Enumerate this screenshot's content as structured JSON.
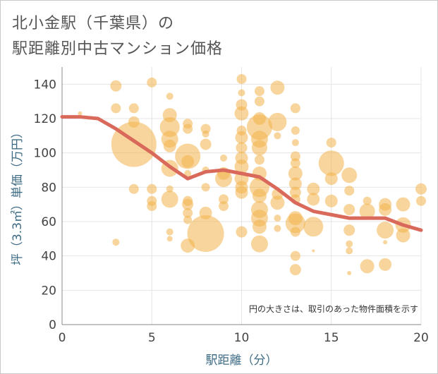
{
  "title_line1": "北小金駅（千葉県）の",
  "title_line2": "駅距離別中古マンション価格",
  "chart_data": {
    "type": "scatter",
    "title": "北小金駅（千葉県）の 駅距離別中古マンション価格",
    "xlabel": "駅距離（分）",
    "ylabel": "坪（3.3㎡）単価（万円）",
    "xlim": [
      0,
      20
    ],
    "ylim": [
      0,
      150
    ],
    "x_ticks": [
      0,
      5,
      10,
      15,
      20
    ],
    "y_ticks": [
      0,
      20,
      40,
      60,
      80,
      100,
      120,
      140
    ],
    "grid": true,
    "note": "円の大きさは、取引のあった物件面積を示す",
    "colors": {
      "bubble": "#f2b24a",
      "line": "#d9695a",
      "grid": "#e4e4e4"
    },
    "bubbles": [
      {
        "x": 1,
        "y": 123,
        "size": 3
      },
      {
        "x": 3,
        "y": 139,
        "size": 8
      },
      {
        "x": 3,
        "y": 126,
        "size": 7
      },
      {
        "x": 3,
        "y": 48,
        "size": 5
      },
      {
        "x": 4,
        "y": 105,
        "size": 32
      },
      {
        "x": 4,
        "y": 126,
        "size": 7
      },
      {
        "x": 4,
        "y": 118,
        "size": 8
      },
      {
        "x": 4,
        "y": 79,
        "size": 7
      },
      {
        "x": 5,
        "y": 141,
        "size": 7
      },
      {
        "x": 5,
        "y": 79,
        "size": 7
      },
      {
        "x": 5,
        "y": 72,
        "size": 7
      },
      {
        "x": 5,
        "y": 69,
        "size": 7
      },
      {
        "x": 6,
        "y": 133,
        "size": 5
      },
      {
        "x": 6,
        "y": 122,
        "size": 10
      },
      {
        "x": 6,
        "y": 115,
        "size": 14
      },
      {
        "x": 6,
        "y": 108,
        "size": 12
      },
      {
        "x": 6,
        "y": 104,
        "size": 9
      },
      {
        "x": 6,
        "y": 91,
        "size": 12
      },
      {
        "x": 6,
        "y": 79,
        "size": 5
      },
      {
        "x": 6,
        "y": 73,
        "size": 12
      },
      {
        "x": 6,
        "y": 54,
        "size": 5
      },
      {
        "x": 6,
        "y": 50,
        "size": 4
      },
      {
        "x": 7,
        "y": 117,
        "size": 7
      },
      {
        "x": 7,
        "y": 114,
        "size": 7
      },
      {
        "x": 7,
        "y": 98,
        "size": 18
      },
      {
        "x": 7,
        "y": 95,
        "size": 9
      },
      {
        "x": 7,
        "y": 88,
        "size": 5
      },
      {
        "x": 7,
        "y": 72,
        "size": 7
      },
      {
        "x": 7,
        "y": 70,
        "size": 8
      },
      {
        "x": 7,
        "y": 65,
        "size": 7
      },
      {
        "x": 7,
        "y": 61,
        "size": 6
      },
      {
        "x": 7,
        "y": 46,
        "size": 10
      },
      {
        "x": 8,
        "y": 114,
        "size": 7
      },
      {
        "x": 8,
        "y": 111,
        "size": 5
      },
      {
        "x": 8,
        "y": 105,
        "size": 8
      },
      {
        "x": 8,
        "y": 90,
        "size": 5
      },
      {
        "x": 8,
        "y": 80,
        "size": 6
      },
      {
        "x": 8,
        "y": 65,
        "size": 9
      },
      {
        "x": 8,
        "y": 53,
        "size": 26
      },
      {
        "x": 9,
        "y": 97,
        "size": 5
      },
      {
        "x": 9,
        "y": 88,
        "size": 9
      },
      {
        "x": 9,
        "y": 85,
        "size": 12
      },
      {
        "x": 9,
        "y": 73,
        "size": 7
      },
      {
        "x": 9,
        "y": 69,
        "size": 7
      },
      {
        "x": 10,
        "y": 143,
        "size": 7
      },
      {
        "x": 10,
        "y": 135,
        "size": 5
      },
      {
        "x": 10,
        "y": 128,
        "size": 8
      },
      {
        "x": 10,
        "y": 123,
        "size": 10
      },
      {
        "x": 10,
        "y": 113,
        "size": 7
      },
      {
        "x": 10,
        "y": 109,
        "size": 9
      },
      {
        "x": 10,
        "y": 103,
        "size": 8
      },
      {
        "x": 10,
        "y": 97,
        "size": 9
      },
      {
        "x": 10,
        "y": 92,
        "size": 10
      },
      {
        "x": 10,
        "y": 85,
        "size": 10
      },
      {
        "x": 10,
        "y": 80,
        "size": 9
      },
      {
        "x": 10,
        "y": 77,
        "size": 9
      },
      {
        "x": 10,
        "y": 54,
        "size": 8
      },
      {
        "x": 11,
        "y": 136,
        "size": 7
      },
      {
        "x": 11,
        "y": 130,
        "size": 7
      },
      {
        "x": 11,
        "y": 120,
        "size": 9
      },
      {
        "x": 11,
        "y": 115,
        "size": 18
      },
      {
        "x": 11,
        "y": 108,
        "size": 12
      },
      {
        "x": 11,
        "y": 103,
        "size": 11
      },
      {
        "x": 11,
        "y": 96,
        "size": 7
      },
      {
        "x": 11,
        "y": 88,
        "size": 10
      },
      {
        "x": 11,
        "y": 80,
        "size": 14
      },
      {
        "x": 11,
        "y": 75,
        "size": 10
      },
      {
        "x": 11,
        "y": 67,
        "size": 12
      },
      {
        "x": 11,
        "y": 62,
        "size": 12
      },
      {
        "x": 11,
        "y": 57,
        "size": 10
      },
      {
        "x": 11,
        "y": 47,
        "size": 12
      },
      {
        "x": 12,
        "y": 138,
        "size": 10
      },
      {
        "x": 12,
        "y": 118,
        "size": 13
      },
      {
        "x": 12,
        "y": 110,
        "size": 5
      },
      {
        "x": 12,
        "y": 76,
        "size": 8
      },
      {
        "x": 12,
        "y": 71,
        "size": 10
      },
      {
        "x": 12,
        "y": 62,
        "size": 5
      },
      {
        "x": 12,
        "y": 56,
        "size": 5
      },
      {
        "x": 13,
        "y": 126,
        "size": 7
      },
      {
        "x": 13,
        "y": 113,
        "size": 6
      },
      {
        "x": 13,
        "y": 106,
        "size": 5
      },
      {
        "x": 13,
        "y": 98,
        "size": 7
      },
      {
        "x": 13,
        "y": 94,
        "size": 7
      },
      {
        "x": 13,
        "y": 88,
        "size": 10
      },
      {
        "x": 13,
        "y": 82,
        "size": 9
      },
      {
        "x": 13,
        "y": 77,
        "size": 8
      },
      {
        "x": 13,
        "y": 73,
        "size": 7
      },
      {
        "x": 13,
        "y": 62,
        "size": 10
      },
      {
        "x": 13,
        "y": 59,
        "size": 14
      },
      {
        "x": 13,
        "y": 54,
        "size": 7
      },
      {
        "x": 13,
        "y": 40,
        "size": 7
      },
      {
        "x": 13,
        "y": 32,
        "size": 8
      },
      {
        "x": 14,
        "y": 79,
        "size": 9
      },
      {
        "x": 14,
        "y": 73,
        "size": 9
      },
      {
        "x": 14,
        "y": 57,
        "size": 14
      },
      {
        "x": 14,
        "y": 43,
        "size": 2
      },
      {
        "x": 15,
        "y": 106,
        "size": 7
      },
      {
        "x": 15,
        "y": 94,
        "size": 18
      },
      {
        "x": 15,
        "y": 85,
        "size": 9
      },
      {
        "x": 15,
        "y": 72,
        "size": 9
      },
      {
        "x": 16,
        "y": 87,
        "size": 11
      },
      {
        "x": 16,
        "y": 78,
        "size": 7
      },
      {
        "x": 16,
        "y": 67,
        "size": 8
      },
      {
        "x": 16,
        "y": 55,
        "size": 8
      },
      {
        "x": 16,
        "y": 47,
        "size": 5
      },
      {
        "x": 16,
        "y": 43,
        "size": 5
      },
      {
        "x": 16,
        "y": 30,
        "size": 3
      },
      {
        "x": 17,
        "y": 72,
        "size": 6
      },
      {
        "x": 17,
        "y": 66,
        "size": 11
      },
      {
        "x": 17,
        "y": 34,
        "size": 10
      },
      {
        "x": 18,
        "y": 70,
        "size": 9
      },
      {
        "x": 18,
        "y": 67,
        "size": 9
      },
      {
        "x": 18,
        "y": 55,
        "size": 12
      },
      {
        "x": 18,
        "y": 48,
        "size": 3
      },
      {
        "x": 18,
        "y": 35,
        "size": 9
      },
      {
        "x": 19,
        "y": 70,
        "size": 10
      },
      {
        "x": 19,
        "y": 58,
        "size": 11
      },
      {
        "x": 19,
        "y": 52,
        "size": 10
      },
      {
        "x": 20,
        "y": 79,
        "size": 8
      },
      {
        "x": 20,
        "y": 72,
        "size": 7
      }
    ],
    "series": [
      {
        "type": "line",
        "x": [
          0,
          1,
          2,
          3,
          4,
          5,
          6,
          7,
          8,
          9,
          10,
          11,
          12,
          13,
          14,
          15,
          16,
          17,
          18,
          19,
          20
        ],
        "values": [
          121,
          121,
          120,
          114,
          107,
          100,
          92,
          85,
          89,
          90,
          88,
          86,
          79,
          71,
          66,
          64,
          62,
          62,
          62,
          58,
          55
        ]
      }
    ]
  }
}
